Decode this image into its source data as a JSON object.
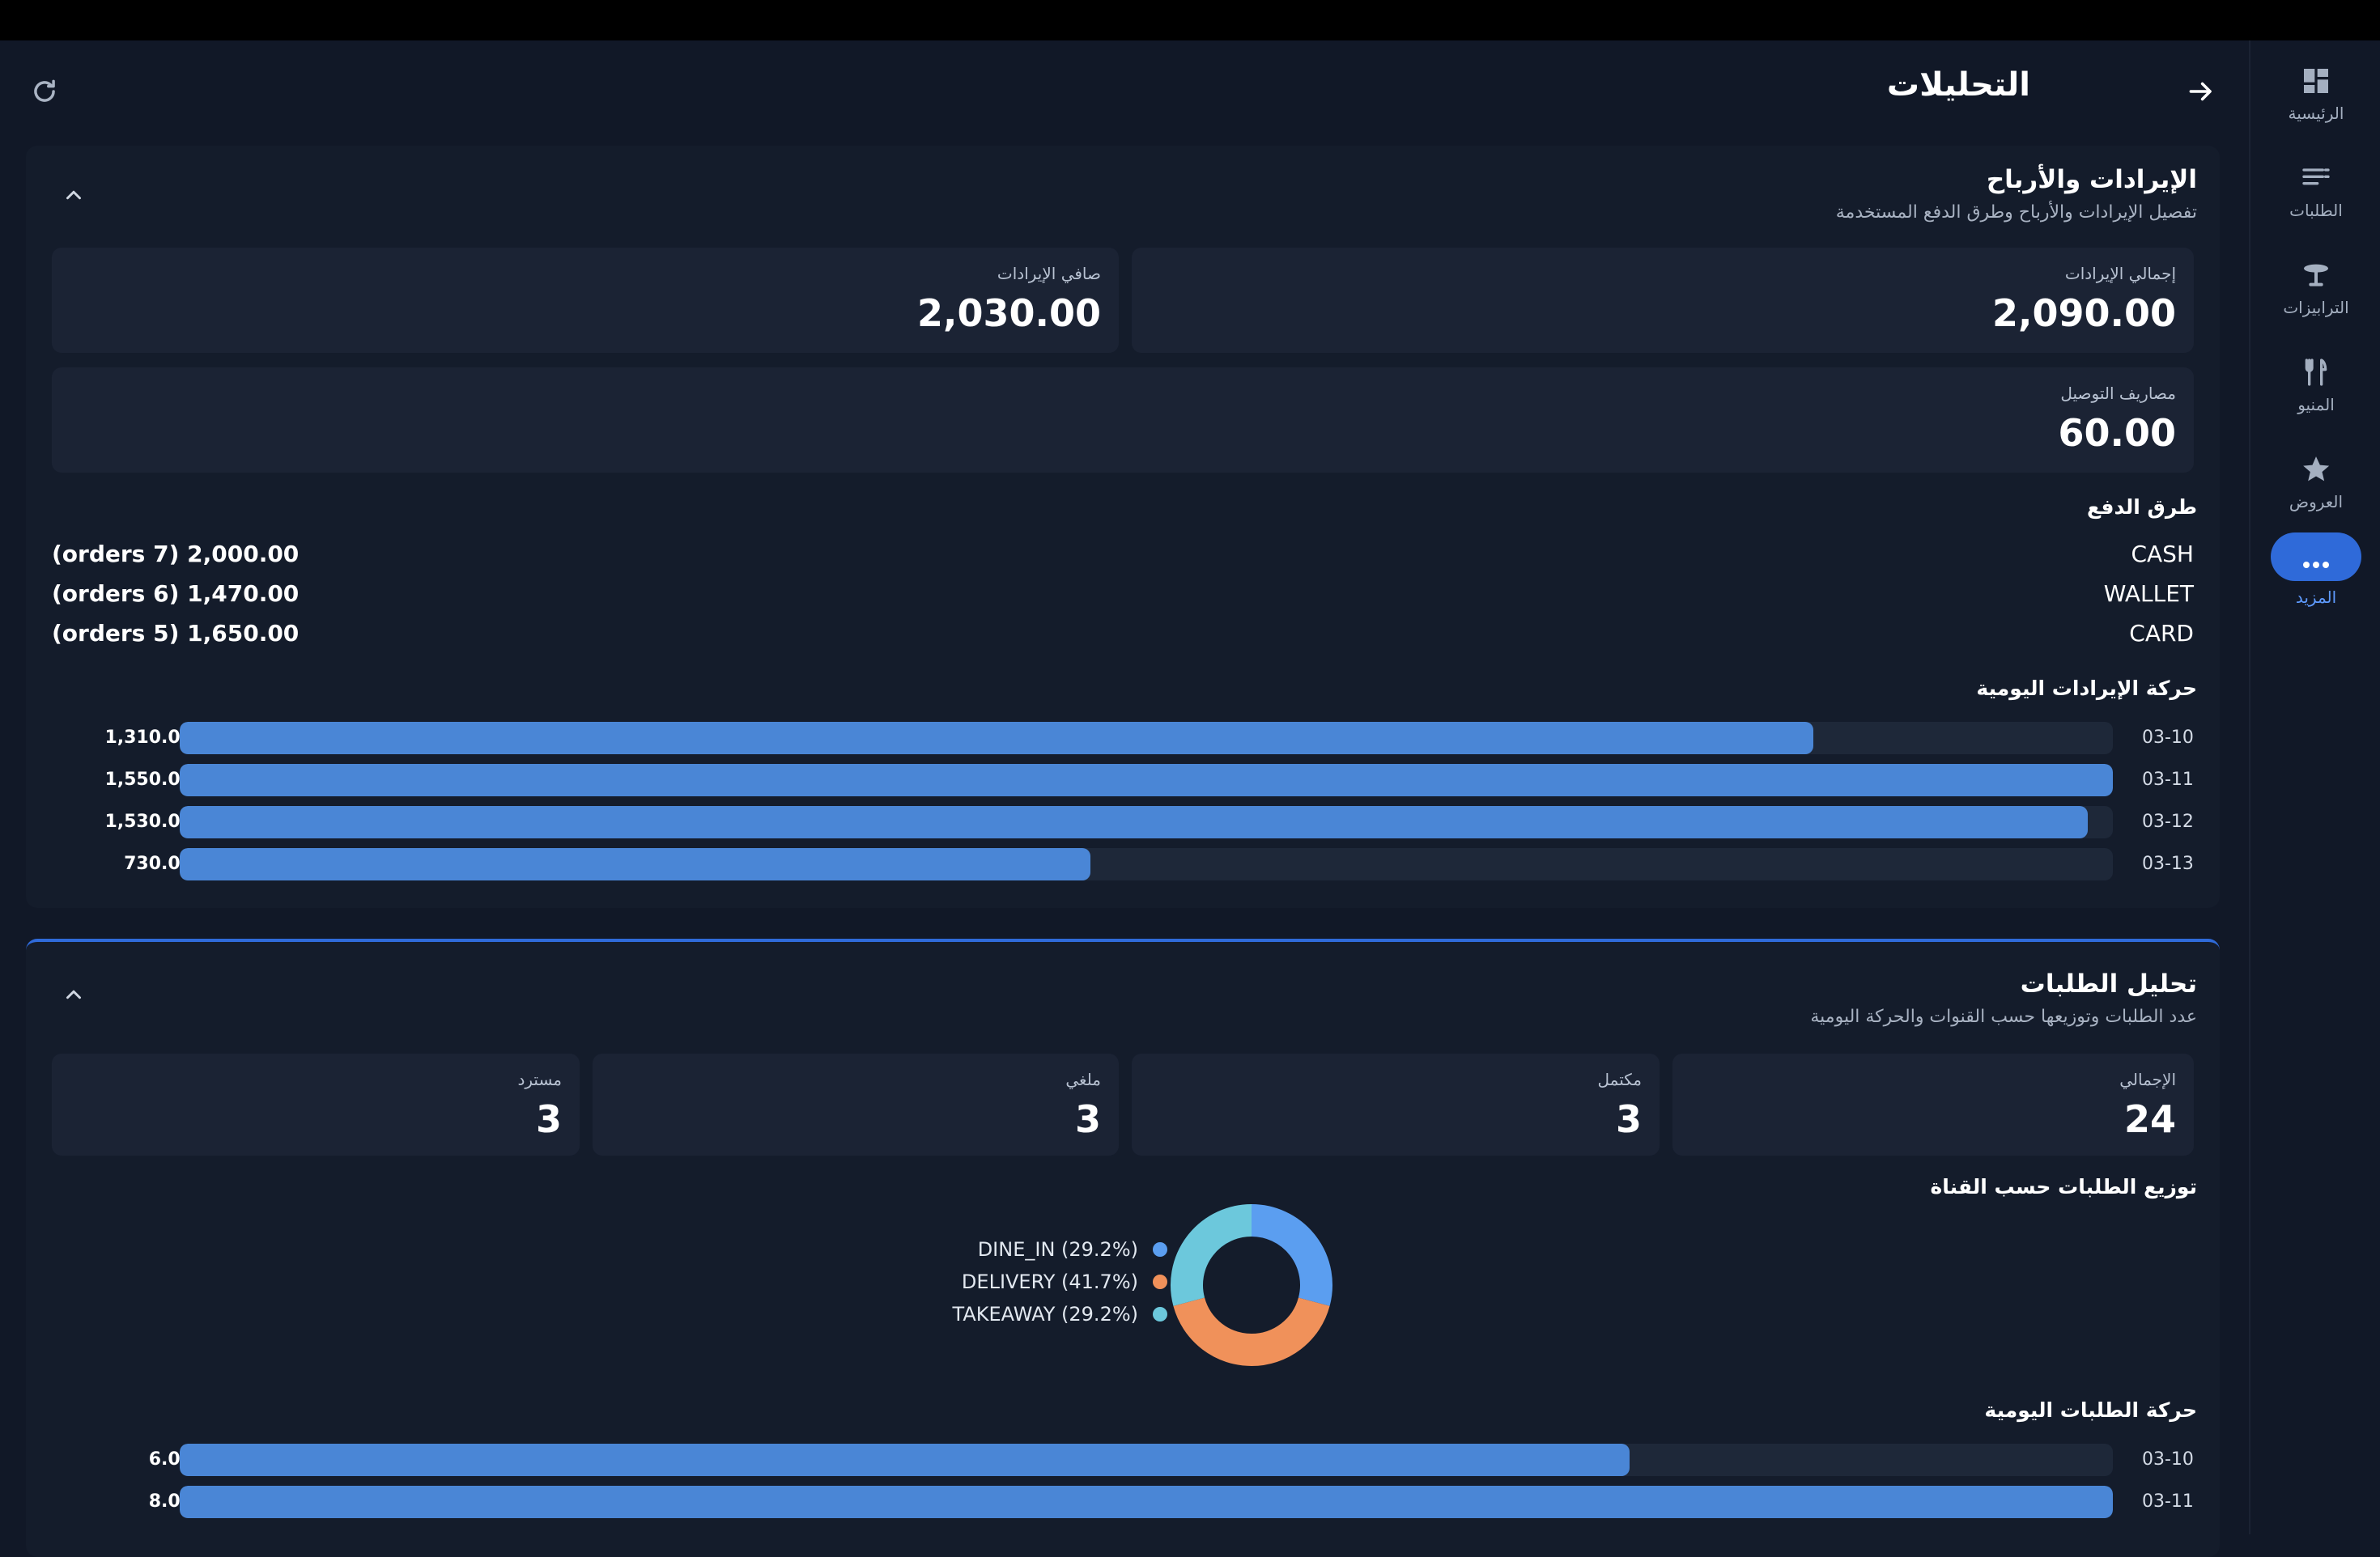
{
  "header": {
    "title": "التحليلات"
  },
  "nav": [
    {
      "label": "الرئيسية",
      "icon": "dashboard-icon"
    },
    {
      "label": "الطلبات",
      "icon": "list-icon"
    },
    {
      "label": "الترابيزات",
      "icon": "table-icon"
    },
    {
      "label": "المنيو",
      "icon": "cutlery-icon"
    },
    {
      "label": "العروض",
      "icon": "star-icon"
    },
    {
      "label": "المزيد",
      "icon": "more-icon",
      "active": true
    }
  ],
  "revenue": {
    "title": "الإيرادات والأرباح",
    "subtitle": "تفصيل الإيرادات والأرباح وطرق الدفع المستخدمة",
    "cards": {
      "gross": {
        "label": "إجمالي الإيرادات",
        "value": "2,090.00"
      },
      "net": {
        "label": "صافي الإيرادات",
        "value": "2,030.00"
      },
      "delivery": {
        "label": "مصاريف التوصيل",
        "value": "60.00"
      }
    },
    "payments_title": "طرق الدفع",
    "payments": [
      {
        "name": "CASH",
        "amount": "(orders 7) 2,000.00"
      },
      {
        "name": "WALLET",
        "amount": "(orders 6) 1,470.00"
      },
      {
        "name": "CARD",
        "amount": "(orders 5) 1,650.00"
      }
    ],
    "daily_title": "حركة الإيرادات اليومية"
  },
  "orders": {
    "title": "تحليل الطلبات",
    "subtitle": "عدد الطلبات وتوزيعها حسب القنوات والحركة اليومية",
    "cards": {
      "total": {
        "label": "الإجمالي",
        "value": "24"
      },
      "completed": {
        "label": "مكتمل",
        "value": "3"
      },
      "cancelled": {
        "label": "ملغي",
        "value": "3"
      },
      "refunded": {
        "label": "مسترد",
        "value": "3"
      }
    },
    "channels_title": "توزيع الطلبات حسب القناة",
    "daily_title": "حركة الطلبات اليومية"
  },
  "colors": {
    "accent": "#2f6ad9",
    "bar": "#4a86d6",
    "dine_in": "#5b9ef0",
    "delivery": "#f0915a",
    "takeaway": "#6cc8dc"
  },
  "chart_data": [
    {
      "type": "bar",
      "orientation": "horizontal",
      "title": "حركة الإيرادات اليومية",
      "categories": [
        "03-10",
        "03-11",
        "03-12",
        "03-13"
      ],
      "values": [
        1310,
        1550,
        1530,
        730
      ],
      "value_labels": [
        "1,310.00",
        "1,550.00",
        "1,530.00",
        "730.00"
      ],
      "xlim": [
        0,
        1550
      ]
    },
    {
      "type": "pie",
      "donut": true,
      "title": "توزيع الطلبات حسب القناة",
      "series": [
        {
          "name": "DINE_IN",
          "value": 29.2,
          "label": "DINE_IN (29.2%)",
          "color": "#5b9ef0"
        },
        {
          "name": "DELIVERY",
          "value": 41.7,
          "label": "DELIVERY (41.7%)",
          "color": "#f0915a"
        },
        {
          "name": "TAKEAWAY",
          "value": 29.2,
          "label": "TAKEAWAY (29.2%)",
          "color": "#6cc8dc"
        }
      ],
      "legend": "left"
    },
    {
      "type": "bar",
      "orientation": "horizontal",
      "title": "حركة الطلبات اليومية",
      "categories": [
        "03-10",
        "03-11"
      ],
      "values": [
        6,
        8
      ],
      "value_labels": [
        "6.00",
        "8.00"
      ],
      "xlim": [
        0,
        8
      ]
    }
  ]
}
